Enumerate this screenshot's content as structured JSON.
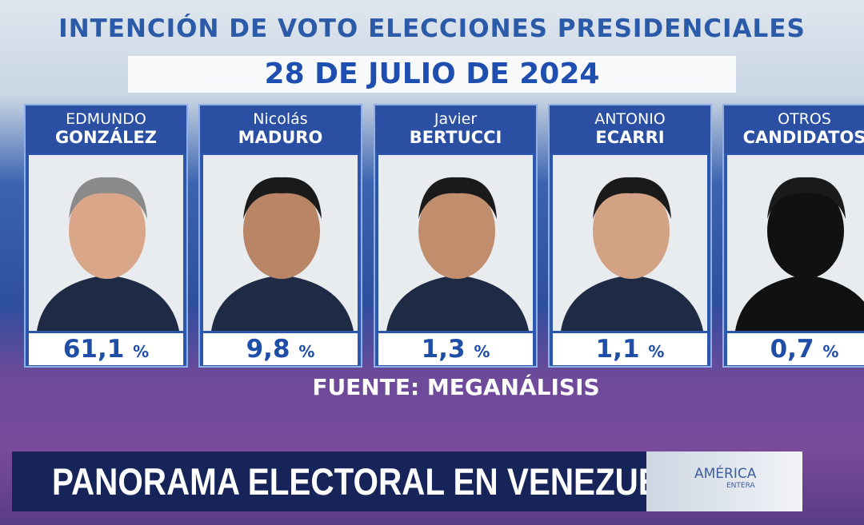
{
  "header": {
    "title": "INTENCIÓN DE VOTO ELECCIONES PRESIDENCIALES",
    "date": "28 DE JULIO DE 2024"
  },
  "candidates": [
    {
      "first": "EDMUNDO",
      "last": "GONZÁLEZ",
      "value": "61,1",
      "unit": "%"
    },
    {
      "first": "Nicolás",
      "last": "MADURO",
      "value": "9,8",
      "unit": "%"
    },
    {
      "first": "Javier",
      "last": "BERTUCCI",
      "value": "1,3",
      "unit": "%"
    },
    {
      "first": "ANTONIO",
      "last": "ECARRI",
      "value": "1,1",
      "unit": "%"
    },
    {
      "first": "OTROS",
      "last": "CANDIDATOS",
      "value": "0,7",
      "unit": "%"
    }
  ],
  "source": "FUENTE: MEGANÁLISIS",
  "banner": {
    "text": "PANORAMA ELECTORAL EN VENEZUELA",
    "logo": "AMÉRICA",
    "logo_sub": "ENTERA"
  }
}
